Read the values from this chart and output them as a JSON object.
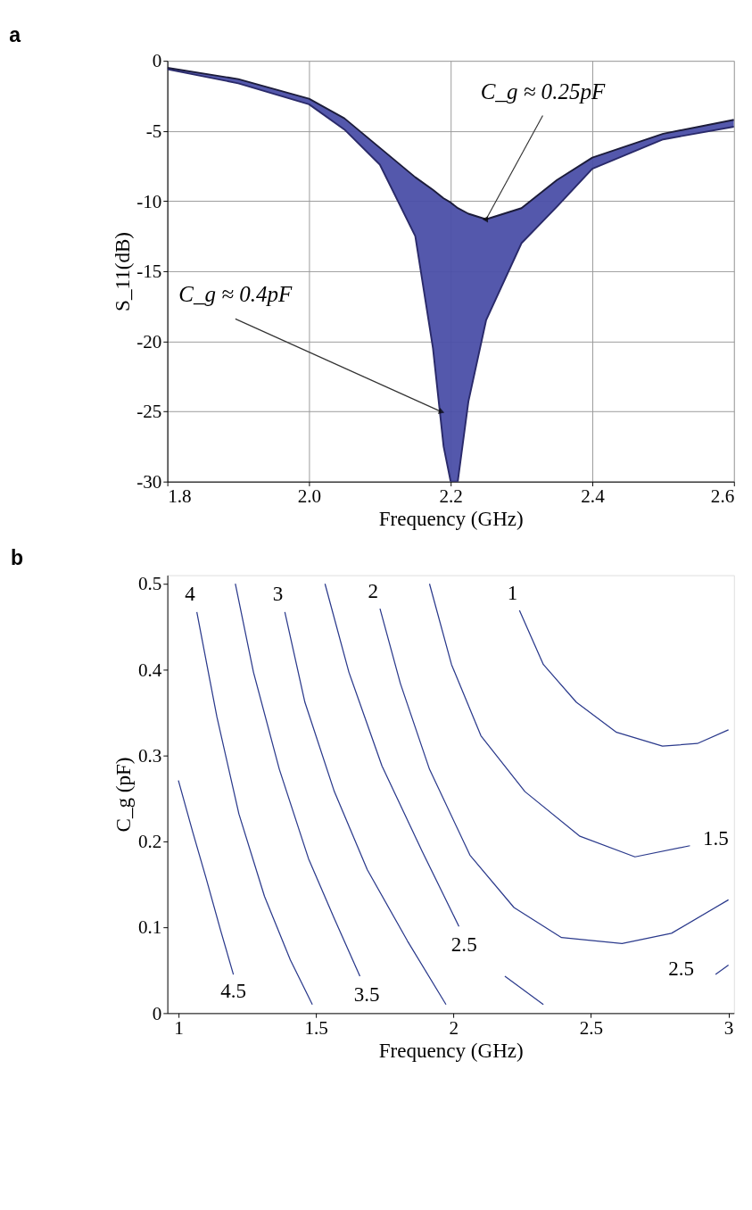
{
  "chart_data": [
    {
      "type": "line",
      "title": "a",
      "xlabel": "Frequency (GHz)",
      "ylabel": "S_11(dB)",
      "xlim": [
        1.8,
        2.6
      ],
      "xticks": [
        {
          "value": 1.8,
          "label": "1.8"
        },
        {
          "value": 2.0,
          "label": "2.0"
        },
        {
          "value": 2.2,
          "label": "2.2"
        },
        {
          "value": 2.4,
          "label": "2.4"
        },
        {
          "value": 2.6,
          "label": "2.6"
        }
      ],
      "ylim": [
        -30,
        0
      ],
      "yticks": [
        -30,
        -25,
        -20,
        -15,
        -10,
        -5,
        0
      ],
      "grid": true,
      "series": [
        {
          "color": "#1c1c3a",
          "x": [
            1.8,
            1.9,
            2.0,
            2.05,
            2.1,
            2.15,
            2.175,
            2.19,
            2.2,
            2.21,
            2.225,
            2.25,
            2.3,
            2.35,
            2.4,
            2.5,
            2.6
          ],
          "values": [
            -0.5,
            -1.3,
            -2.7,
            -4.1,
            -6.2,
            -8.3,
            -9.2,
            -9.8,
            -10.1,
            -10.5,
            -10.9,
            -11.3,
            -10.5,
            -8.5,
            -6.9,
            -5.2,
            -4.2
          ],
          "lower": [
            -0.6,
            -1.6,
            -3.1,
            -4.9,
            -7.4,
            -12.5,
            -20.5,
            -27.5,
            -30,
            -30,
            -24.3,
            -18.5,
            -13,
            -10.4,
            -7.7,
            -5.6,
            -4.7
          ],
          "upper": [
            -0.5,
            -1.3,
            -2.7,
            -4.1,
            -6.2,
            -8.3,
            -9.2,
            -9.8,
            -10.1,
            -10.5,
            -10.9,
            -11.3,
            -10.5,
            -8.5,
            -6.9,
            -5.2,
            -4.2
          ]
        },
        {
          "color": "#2a2a6a",
          "x": [
            1.8,
            1.9,
            2.0,
            2.05,
            2.1,
            2.15,
            2.175,
            2.19,
            2.2,
            2.21,
            2.225,
            2.25,
            2.3,
            2.35,
            2.4,
            2.5,
            2.6
          ],
          "values": [
            -0.6,
            -1.6,
            -3.1,
            -4.9,
            -7.4,
            -12.5,
            -20.5,
            -27.5,
            -30,
            -30,
            -24.3,
            -18.5,
            -13,
            -10.4,
            -7.7,
            -5.6,
            -4.7
          ]
        }
      ],
      "annotations": [
        {
          "text": "C_g ≈ 0.25pF",
          "x": 2.25,
          "y": -11.3
        },
        {
          "text": "C_g ≈ 0.4pF",
          "x": 2.186,
          "y": -25
        }
      ]
    },
    {
      "type": "line",
      "title": "b",
      "xlabel": "Frequency (GHz)",
      "ylabel": "C_g (pF)",
      "xlim": [
        0.96,
        3.02
      ],
      "xticks": [
        1,
        1.5,
        2,
        2.5,
        3
      ],
      "ylim": [
        0,
        0.51
      ],
      "yticks": [
        0,
        0.1,
        0.2,
        0.3,
        0.4,
        0.5
      ],
      "grid": false,
      "series": [
        {
          "name": "4.5",
          "color": "#2b3a8c",
          "x": [
            1.0,
            1.053,
            1.1,
            1.153,
            1.2
          ],
          "values": [
            0.271,
            0.21,
            0.158,
            0.097,
            0.045
          ]
        },
        {
          "name": "4",
          "color": "#2b3a8c",
          "x": [
            1.067,
            1.14,
            1.22,
            1.313,
            1.407,
            1.487
          ],
          "values": [
            0.467,
            0.345,
            0.232,
            0.136,
            0.062,
            0.01
          ]
        },
        {
          "name": "3.5",
          "color": "#2b3a8c",
          "x": [
            1.207,
            1.273,
            1.367,
            1.473,
            1.567,
            1.66
          ],
          "values": [
            0.5,
            0.397,
            0.284,
            0.18,
            0.11,
            0.043
          ]
        },
        {
          "name": "3",
          "color": "#2b3a8c",
          "x": [
            1.387,
            1.46,
            1.567,
            1.687,
            1.833,
            1.973
          ],
          "values": [
            0.467,
            0.362,
            0.258,
            0.167,
            0.084,
            0.01
          ]
        },
        {
          "name": "2.5",
          "color": "#2b3a8c",
          "x": [
            1.533,
            1.62,
            1.74,
            1.887,
            2.02
          ],
          "values": [
            0.5,
            0.397,
            0.288,
            0.188,
            0.101
          ]
        },
        {
          "color": "#2b3a8c",
          "x": [
            2.187,
            2.327
          ],
          "values": [
            0.043,
            0.01
          ]
        },
        {
          "name": "2.5",
          "color": "#2b3a8c",
          "x": [
            2.953,
            3.0
          ],
          "values": [
            0.045,
            0.056
          ]
        },
        {
          "name": "2",
          "color": "#2b3a8c",
          "x": [
            1.733,
            1.807,
            1.913,
            2.06,
            2.22,
            2.393,
            2.613,
            2.793,
            3.0
          ],
          "values": [
            0.471,
            0.384,
            0.284,
            0.184,
            0.123,
            0.088,
            0.081,
            0.093,
            0.132
          ]
        },
        {
          "name": "1.5",
          "color": "#2b3a8c",
          "x": [
            1.913,
            1.993,
            2.1,
            2.26,
            2.46,
            2.66,
            2.86
          ],
          "values": [
            0.5,
            0.406,
            0.323,
            0.258,
            0.206,
            0.182,
            0.195
          ]
        },
        {
          "name": "1",
          "color": "#2b3a8c",
          "x": [
            2.24,
            2.327,
            2.447,
            2.593,
            2.76,
            2.887,
            3.0
          ],
          "values": [
            0.469,
            0.406,
            0.362,
            0.327,
            0.311,
            0.314,
            0.33
          ]
        }
      ]
    }
  ]
}
